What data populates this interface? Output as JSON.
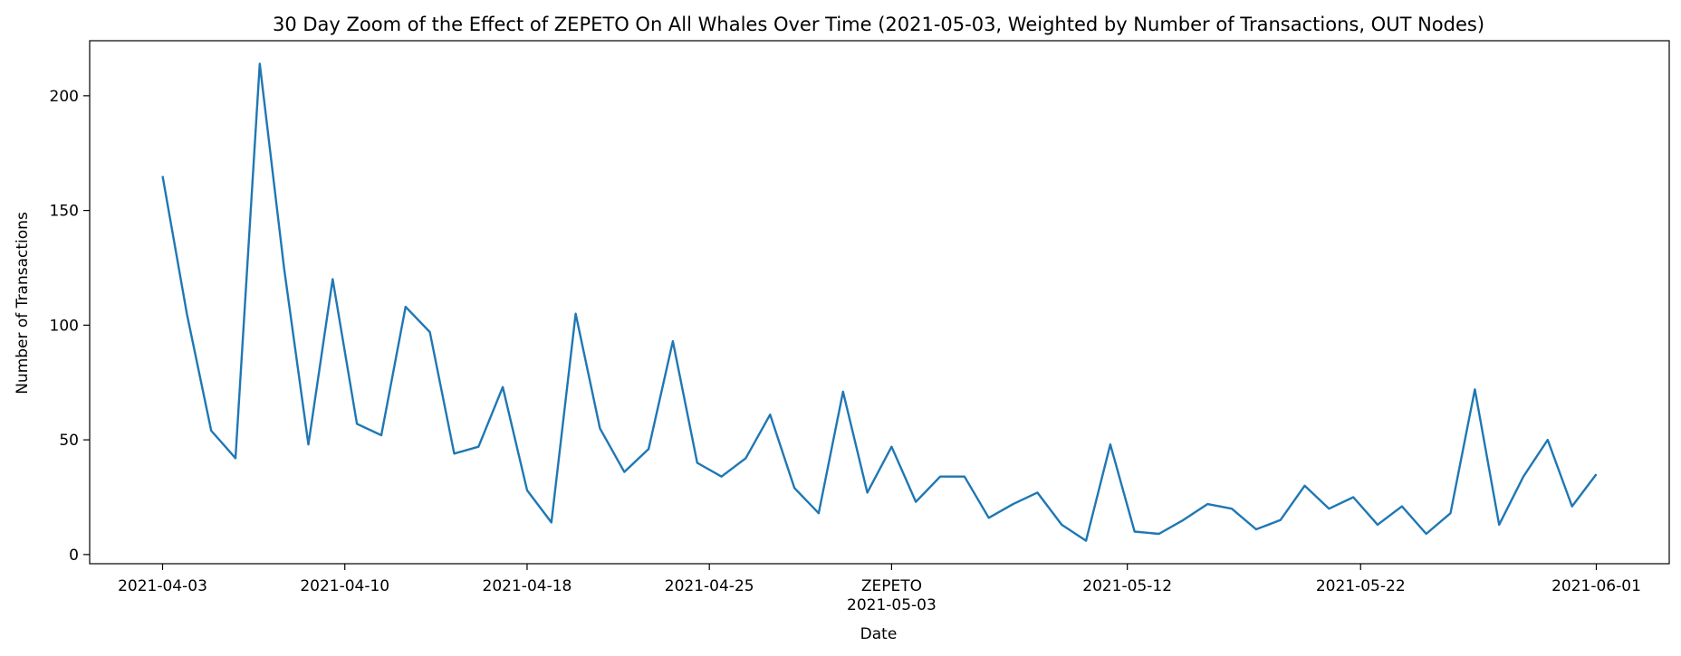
{
  "chart_data": {
    "type": "line",
    "title": "30 Day Zoom of the Effect of ZEPETO On All Whales Over Time (2021-05-03, Weighted by Number of Transactions, OUT Nodes)",
    "xlabel": "Date",
    "ylabel": "Number of Transactions",
    "ylim": [
      -4,
      224
    ],
    "xlim": [
      -3,
      62
    ],
    "grid": false,
    "color": "#1f77b4",
    "x_tick_labels": [
      {
        "x": 0,
        "label": "2021-04-03"
      },
      {
        "x": 7.5,
        "label": "2021-04-10"
      },
      {
        "x": 15,
        "label": "2021-04-18"
      },
      {
        "x": 22.5,
        "label": "2021-04-25"
      },
      {
        "x": 30,
        "label": "2021-05-03",
        "annotation": "ZEPETO"
      },
      {
        "x": 39.7,
        "label": "2021-05-12"
      },
      {
        "x": 49.3,
        "label": "2021-05-22"
      },
      {
        "x": 59,
        "label": "2021-06-01"
      }
    ],
    "y_ticks": [
      0,
      50,
      100,
      150,
      200
    ],
    "series": [
      {
        "values": [
          165,
          105,
          54,
          42,
          214,
          125,
          48,
          120,
          57,
          52,
          108,
          97,
          44,
          47,
          73,
          28,
          14,
          105,
          55,
          36,
          46,
          93,
          40,
          34,
          42,
          61,
          29,
          18,
          71,
          27,
          47,
          23,
          34,
          34,
          16,
          22,
          27,
          13,
          6,
          48,
          10,
          9,
          15,
          22,
          20,
          11,
          15,
          30,
          20,
          25,
          13,
          21,
          9,
          18,
          72,
          13,
          34,
          50,
          21,
          35
        ]
      }
    ]
  }
}
